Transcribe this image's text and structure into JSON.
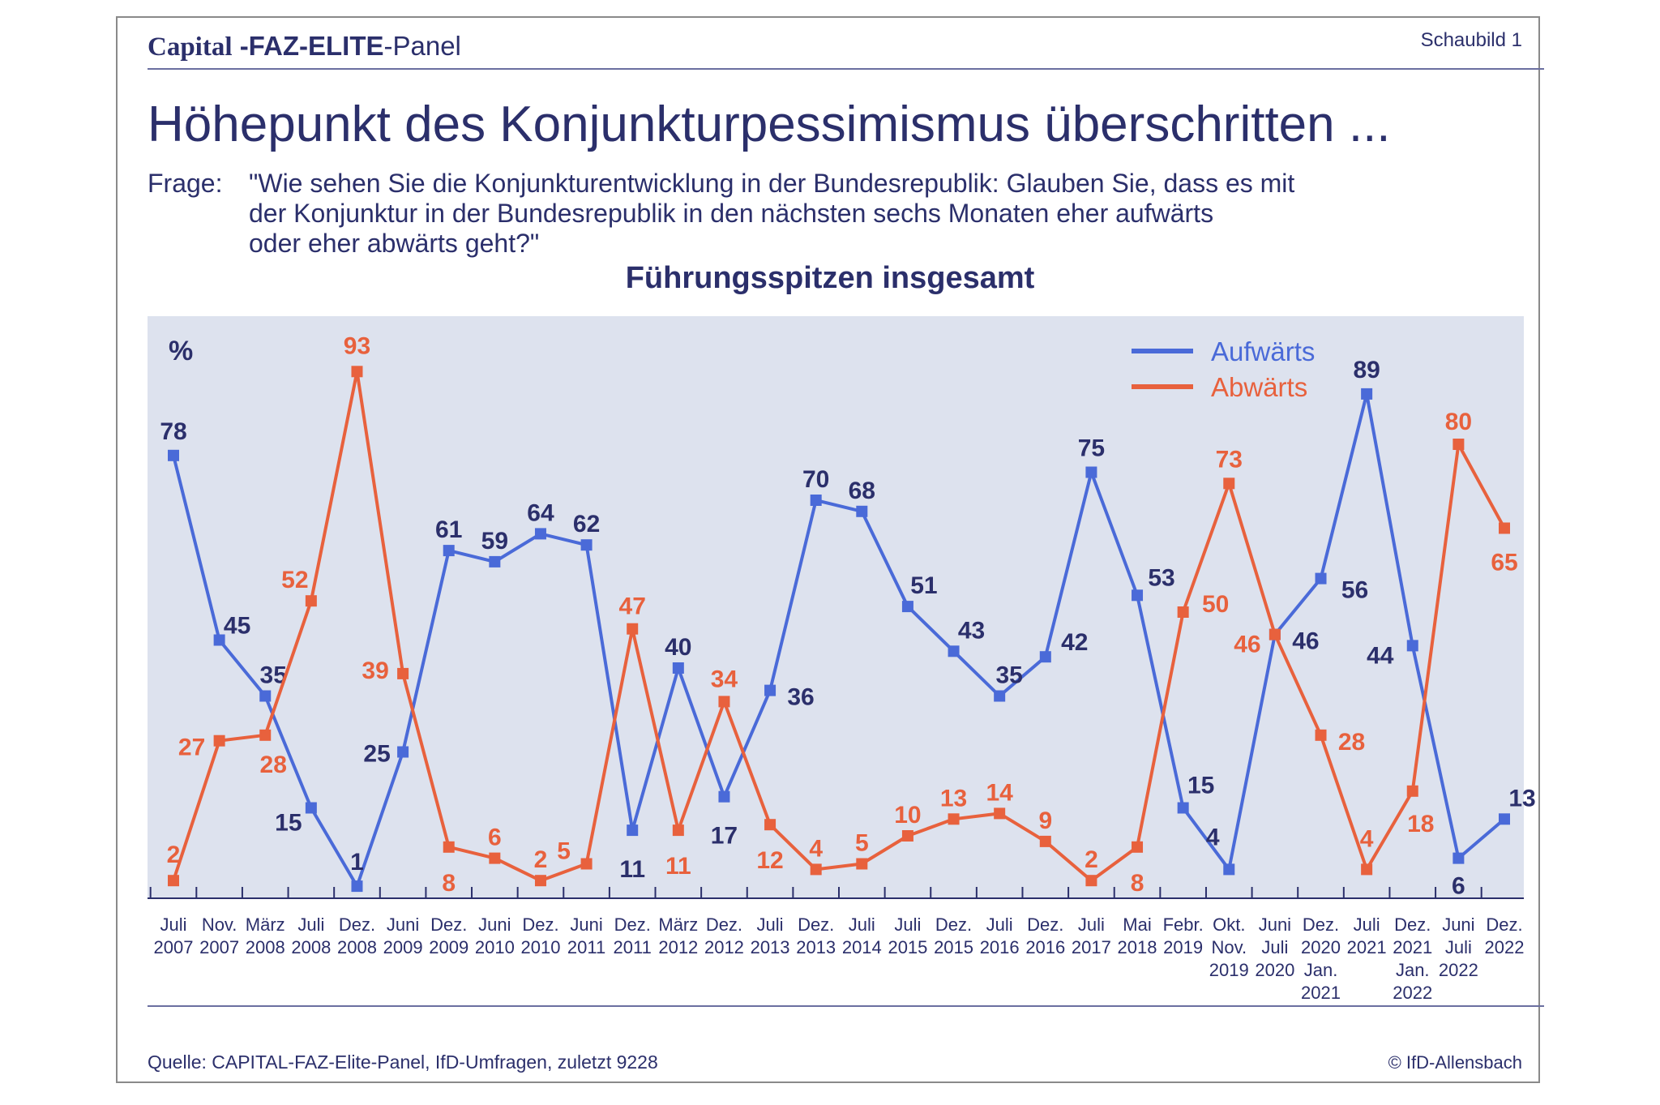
{
  "header": {
    "brand_capital": "Capital",
    "brand_faz": "-FAZ-ELITE",
    "brand_panel": "-Panel",
    "figure_label": "Schaubild 1"
  },
  "title": "Höhepunkt des Konjunkturpessimismus überschritten ...",
  "question": {
    "label": "Frage:",
    "line1": "\"Wie sehen Sie die Konjunkturentwicklung in der Bundesrepublik: Glauben Sie, dass es mit",
    "line2": "der Konjunktur in der Bundesrepublik in den nächsten sechs Monaten eher aufwärts",
    "line3": "oder eher abwärts geht?\""
  },
  "footer": {
    "source": "Quelle: CAPITAL-FAZ-Elite-Panel, IfD-Umfragen, zuletzt 9228",
    "copyright": "© IfD-Allensbach"
  },
  "colors": {
    "up": "#4a6ad8",
    "down": "#e8613d",
    "plot_bg": "#dde2ee",
    "text": "#2b2f6b"
  },
  "chart_data": {
    "type": "line",
    "title": "Führungsspitzen insgesamt",
    "ylabel": "%",
    "ylim": [
      0,
      100
    ],
    "grid": false,
    "legend_position": "top-right",
    "categories": [
      [
        "Juli",
        "2007"
      ],
      [
        "Nov.",
        "2007"
      ],
      [
        "März",
        "2008"
      ],
      [
        "Juli",
        "2008"
      ],
      [
        "Dez.",
        "2008"
      ],
      [
        "Juni",
        "2009"
      ],
      [
        "Dez.",
        "2009"
      ],
      [
        "Juni",
        "2010"
      ],
      [
        "Dez.",
        "2010"
      ],
      [
        "Juni",
        "2011"
      ],
      [
        "Dez.",
        "2011"
      ],
      [
        "März",
        "2012"
      ],
      [
        "Dez.",
        "2012"
      ],
      [
        "Juli",
        "2013"
      ],
      [
        "Dez.",
        "2013"
      ],
      [
        "Juli",
        "2014"
      ],
      [
        "Juli",
        "2015"
      ],
      [
        "Dez.",
        "2015"
      ],
      [
        "Juli",
        "2016"
      ],
      [
        "Dez.",
        "2016"
      ],
      [
        "Juli",
        "2017"
      ],
      [
        "Mai",
        "2018"
      ],
      [
        "Febr.",
        "2019"
      ],
      [
        "Okt.",
        "Nov.",
        "2019"
      ],
      [
        "Juni",
        "Juli",
        "2020"
      ],
      [
        "Dez.",
        "2020",
        "Jan.",
        "2021"
      ],
      [
        "Juli",
        "2021"
      ],
      [
        "Dez.",
        "2021",
        "Jan.",
        "2022"
      ],
      [
        "Juni",
        "Juli",
        "2022"
      ],
      [
        "Dez.",
        "2022"
      ]
    ],
    "series": [
      {
        "name": "Aufwärts",
        "key": "up",
        "values": [
          78,
          45,
          35,
          15,
          1,
          25,
          61,
          59,
          64,
          62,
          11,
          40,
          17,
          36,
          70,
          68,
          51,
          43,
          35,
          42,
          75,
          53,
          15,
          4,
          46,
          56,
          89,
          44,
          6,
          13
        ]
      },
      {
        "name": "Abwärts",
        "key": "down",
        "values": [
          2,
          27,
          28,
          52,
          93,
          39,
          8,
          6,
          2,
          5,
          47,
          11,
          34,
          12,
          4,
          5,
          10,
          13,
          14,
          9,
          2,
          8,
          50,
          73,
          46,
          28,
          4,
          18,
          80,
          65
        ]
      }
    ]
  }
}
